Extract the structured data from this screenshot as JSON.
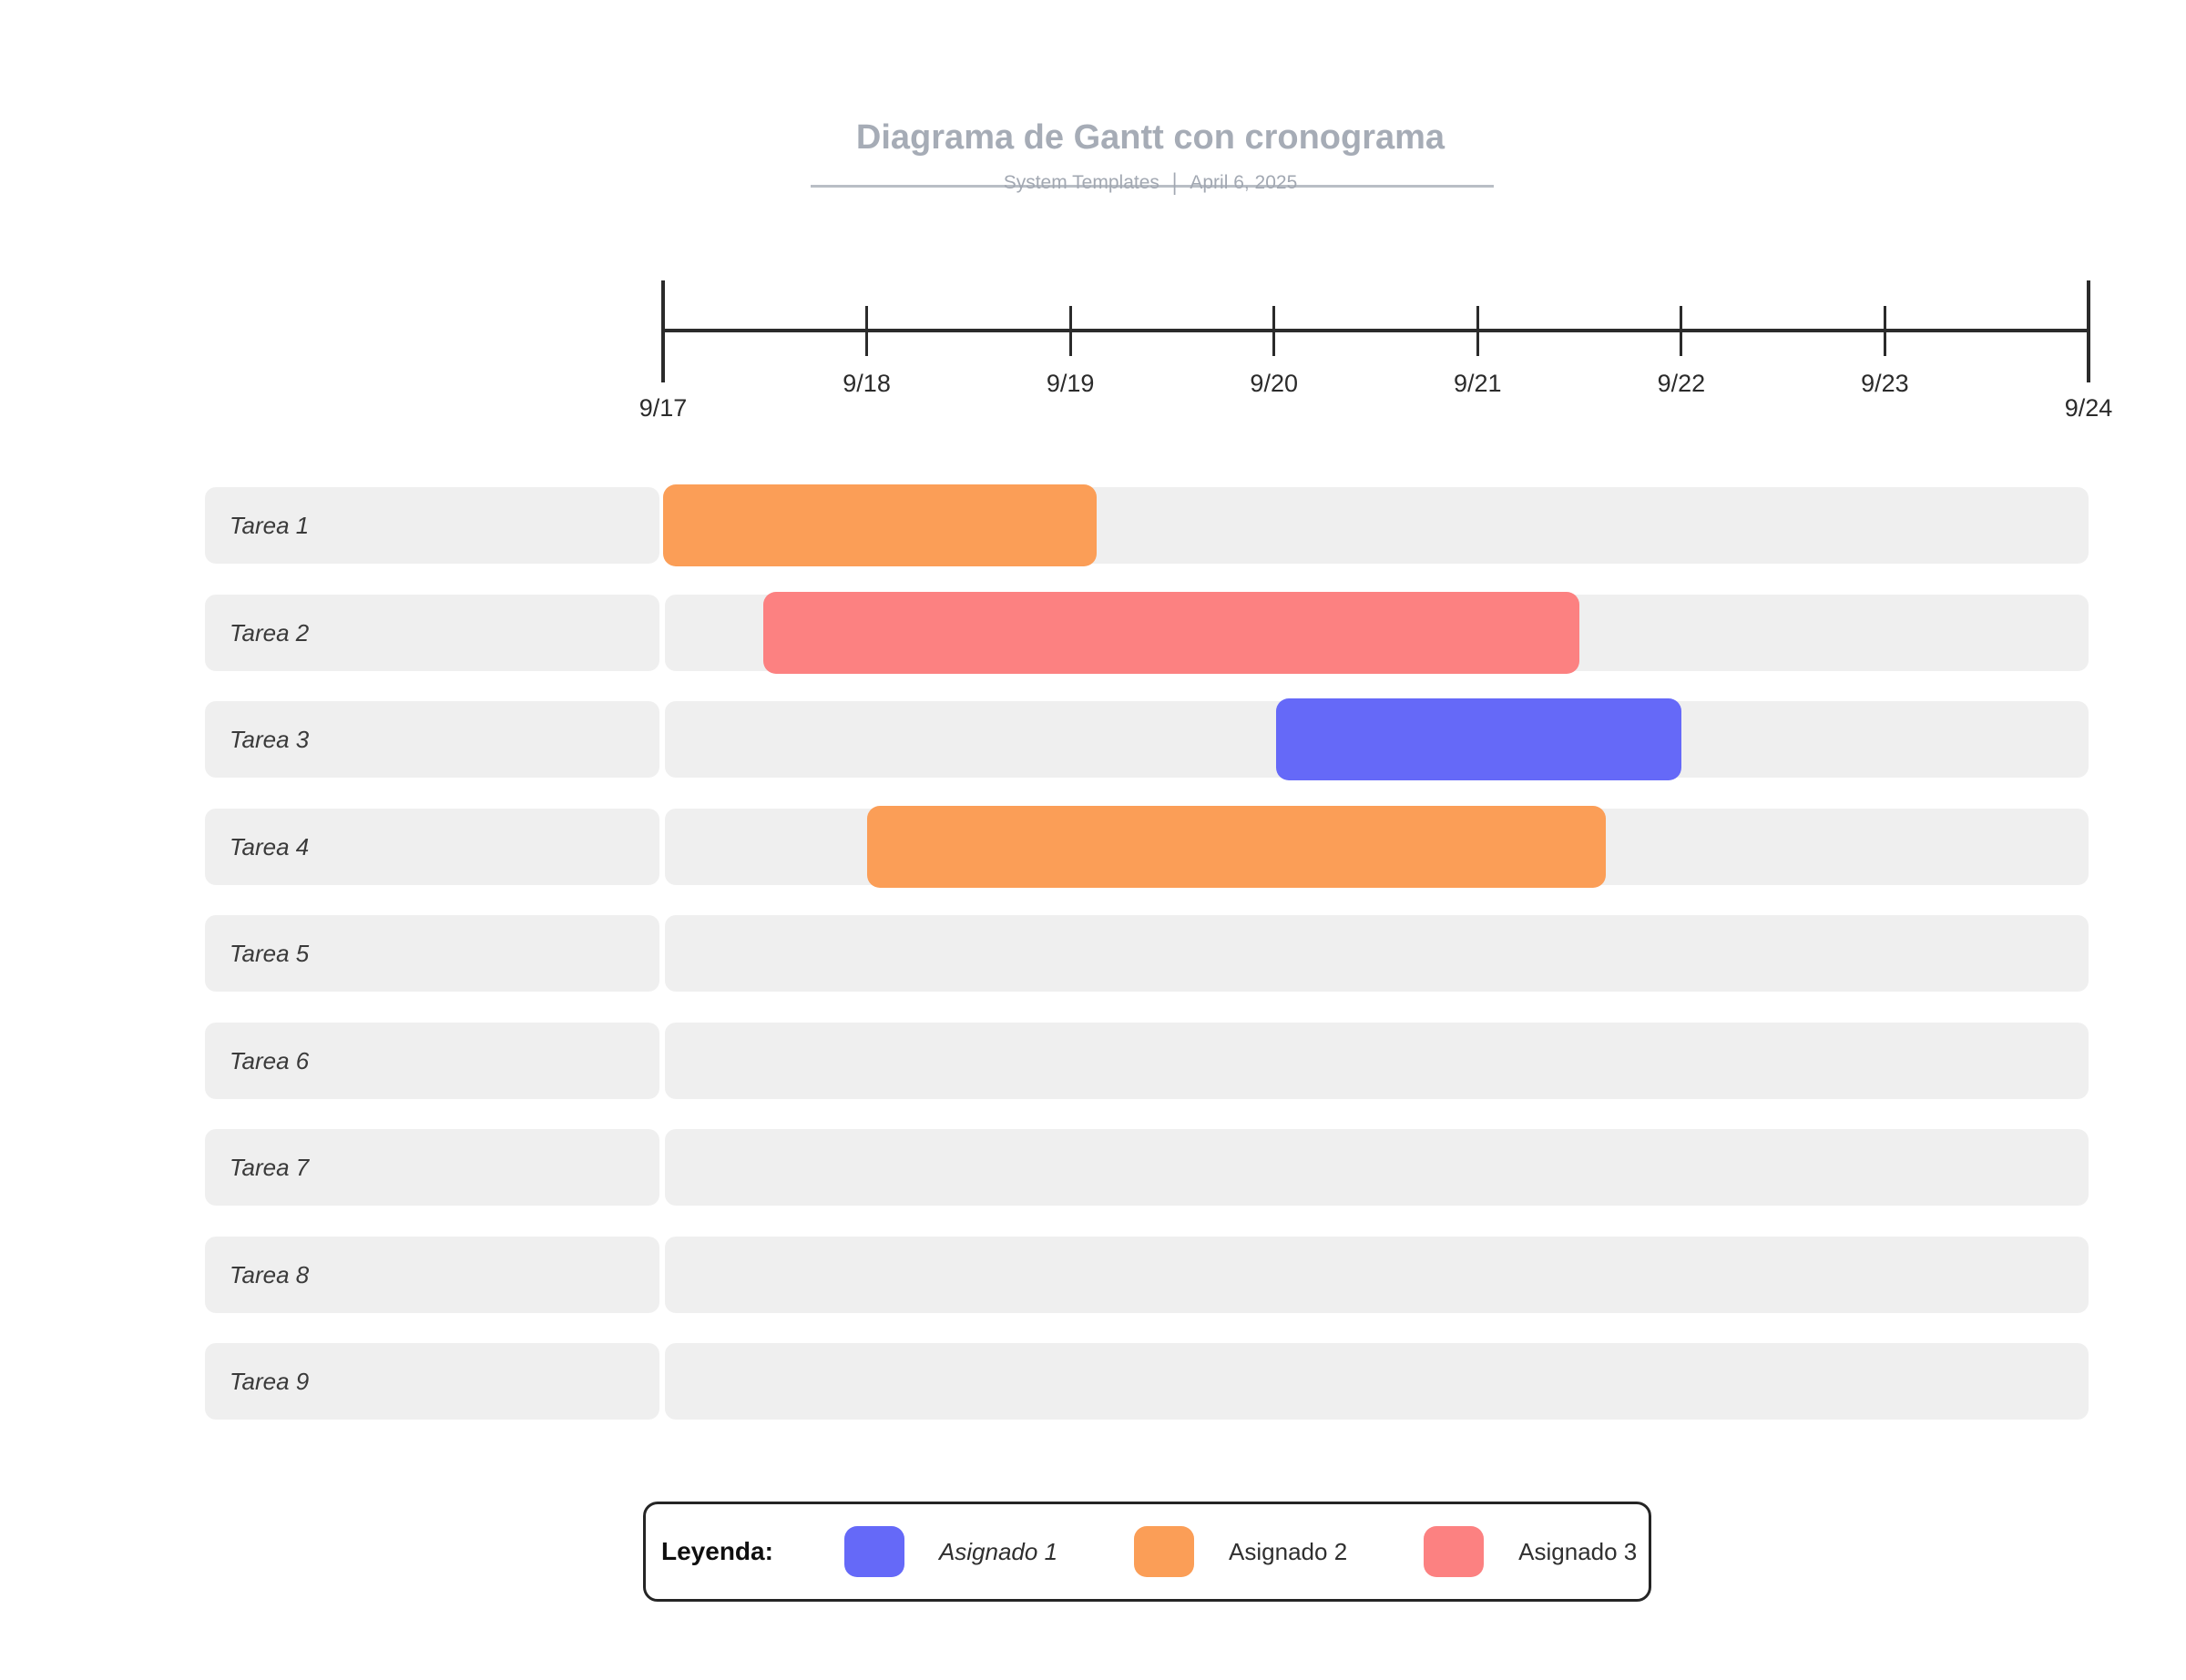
{
  "header": {
    "title": "Diagrama de Gantt con cronograma",
    "subtitle_author": "System Templates",
    "subtitle_divider": "|",
    "subtitle_date": "April 6, 2025"
  },
  "colors": {
    "accent_blue": "#6569F8",
    "accent_orange": "#FB9E57",
    "accent_salmon": "#FC8181",
    "row_gray": "#EFEFEF",
    "axis_dark": "#2B2B2B",
    "title_gray": "#A6ACB6"
  },
  "chart_data": {
    "type": "gantt",
    "title": "Diagrama de Gantt con cronograma",
    "timeline": {
      "start_label": "9/17",
      "end_label": "9/24",
      "days_total": 7,
      "ticks": [
        {
          "label": "9/17",
          "day": 0,
          "major": true
        },
        {
          "label": "9/18",
          "day": 1,
          "major": false
        },
        {
          "label": "9/19",
          "day": 2,
          "major": false
        },
        {
          "label": "9/20",
          "day": 3,
          "major": false
        },
        {
          "label": "9/21",
          "day": 4,
          "major": false
        },
        {
          "label": "9/22",
          "day": 5,
          "major": false
        },
        {
          "label": "9/23",
          "day": 6,
          "major": false
        },
        {
          "label": "9/24",
          "day": 7,
          "major": true
        }
      ]
    },
    "tasks": [
      {
        "label": "Tarea 1",
        "bar": {
          "start_day": 0.0,
          "end_day": 2.13,
          "start_date": "9/17",
          "end_date": "9/19",
          "assignee": "Asignado 2"
        }
      },
      {
        "label": "Tarea 2",
        "bar": {
          "start_day": 0.49,
          "end_day": 4.5,
          "start_date": "9/17",
          "end_date": "9/21",
          "assignee": "Asignado 3"
        }
      },
      {
        "label": "Tarea 3",
        "bar": {
          "start_day": 3.01,
          "end_day": 5.0,
          "start_date": "9/20",
          "end_date": "9/22",
          "assignee": "Asignado 1"
        }
      },
      {
        "label": "Tarea 4",
        "bar": {
          "start_day": 1.0,
          "end_day": 4.63,
          "start_date": "9/18",
          "end_date": "9/21",
          "assignee": "Asignado 2"
        }
      },
      {
        "label": "Tarea 5",
        "bar": null
      },
      {
        "label": "Tarea 6",
        "bar": null
      },
      {
        "label": "Tarea 7",
        "bar": null
      },
      {
        "label": "Tarea 8",
        "bar": null
      },
      {
        "label": "Tarea 9",
        "bar": null
      }
    ],
    "legend": {
      "title": "Leyenda:",
      "items": [
        {
          "label": "Asignado 1",
          "color": "#6569F8",
          "italic": true
        },
        {
          "label": "Asignado 2",
          "color": "#FB9E57",
          "italic": false
        },
        {
          "label": "Asignado 3",
          "color": "#FC8181",
          "italic": false
        }
      ]
    }
  }
}
